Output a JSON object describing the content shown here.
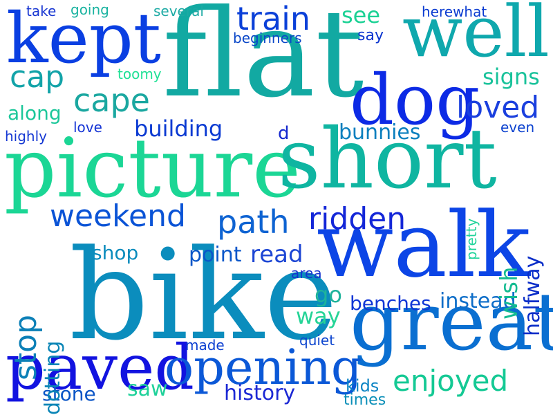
{
  "words": [
    {
      "text": "picture",
      "color": "#1bd695"
    },
    {
      "text": "short",
      "color": "#0fb5a1"
    },
    {
      "text": "bike",
      "color": "#0b8dbd"
    },
    {
      "text": "flat",
      "color": "#12a9a2"
    },
    {
      "text": "walk",
      "color": "#0c45e6"
    },
    {
      "text": "great",
      "color": "#0a6fd1"
    },
    {
      "text": "kept",
      "color": "#0a3fe2"
    },
    {
      "text": "well",
      "color": "#0fa8ad"
    },
    {
      "text": "dog",
      "color": "#0c2ae5"
    },
    {
      "text": "paved",
      "color": "#1213e0"
    },
    {
      "text": "opening",
      "color": "#0b58d7"
    },
    {
      "text": "train",
      "color": "#0b40d8"
    },
    {
      "text": "loved",
      "color": "#1a3fde"
    },
    {
      "text": "cape",
      "color": "#1aa7a0"
    },
    {
      "text": "cap",
      "color": "#12a3a8"
    },
    {
      "text": "path",
      "color": "#0e63d2"
    },
    {
      "text": "ridden",
      "color": "#1427d8"
    },
    {
      "text": "weekend",
      "color": "#0a53d6"
    },
    {
      "text": "building",
      "color": "#0a3ad2"
    },
    {
      "text": "enjoyed",
      "color": "#14c994"
    },
    {
      "text": "stop",
      "color": "#0c80b7"
    },
    {
      "text": "read",
      "color": "#1d46d4"
    },
    {
      "text": "point",
      "color": "#0a56c9"
    },
    {
      "text": "instead",
      "color": "#0c6dc8"
    },
    {
      "text": "benches",
      "color": "#1136d6"
    },
    {
      "text": "bunnies",
      "color": "#0b7fbe"
    },
    {
      "text": "wish",
      "color": "#13bb91"
    },
    {
      "text": "halfway",
      "color": "#0a2dc8"
    },
    {
      "text": "go",
      "color": "#1fb39b"
    },
    {
      "text": "way",
      "color": "#26d497"
    },
    {
      "text": "see",
      "color": "#1bd194"
    },
    {
      "text": "signs",
      "color": "#18c29a"
    },
    {
      "text": "along",
      "color": "#1cc79a"
    },
    {
      "text": "shop",
      "color": "#0b8cbd"
    },
    {
      "text": "dotting",
      "color": "#0a85b6"
    },
    {
      "text": "history",
      "color": "#1c28d4"
    },
    {
      "text": "stone",
      "color": "#0a55c6"
    },
    {
      "text": "saw",
      "color": "#1fd19a"
    },
    {
      "text": "kids",
      "color": "#0b84c4"
    },
    {
      "text": "times",
      "color": "#0a8fb8"
    },
    {
      "text": "made",
      "color": "#0c3fd1"
    },
    {
      "text": "quiet",
      "color": "#0e46cf"
    },
    {
      "text": "area",
      "color": "#1432cf"
    },
    {
      "text": "d",
      "color": "#1528ce"
    },
    {
      "text": "pretty",
      "color": "#1fd39a"
    },
    {
      "text": "even",
      "color": "#0c42cf"
    },
    {
      "text": "love",
      "color": "#1433d5"
    },
    {
      "text": "highly",
      "color": "#1538d3"
    },
    {
      "text": "toomy",
      "color": "#1fe095"
    },
    {
      "text": "beginners",
      "color": "#0a47c8"
    },
    {
      "text": "several",
      "color": "#1daaa4"
    },
    {
      "text": "take",
      "color": "#1937d2"
    },
    {
      "text": "going",
      "color": "#19b3a0"
    },
    {
      "text": "say",
      "color": "#0b35cf"
    },
    {
      "text": "herewhat",
      "color": "#0a3bd1"
    }
  ]
}
